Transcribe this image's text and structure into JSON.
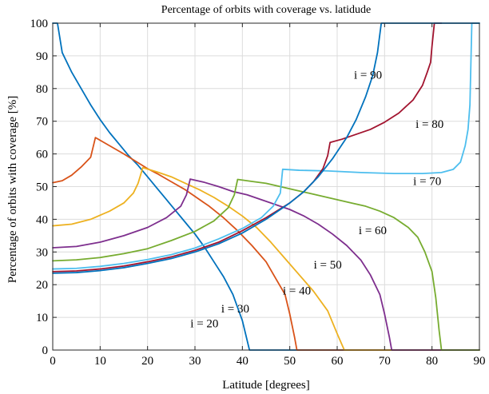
{
  "chart_data": {
    "type": "line",
    "title": "Percentage of orbits with coverage vs. latidude",
    "xlabel": "Latitude [degrees]",
    "ylabel": "Percentage of orbits with coverage [%]",
    "xlim": [
      0,
      90
    ],
    "ylim": [
      0,
      100
    ],
    "xticks": [
      0,
      10,
      20,
      30,
      40,
      50,
      60,
      70,
      80,
      90
    ],
    "yticks": [
      0,
      10,
      20,
      30,
      40,
      50,
      60,
      70,
      80,
      90,
      100
    ],
    "grid": true,
    "legend": "none",
    "series": [
      {
        "name": "i = 20",
        "color": "#0072BD",
        "points": [
          [
            0,
            100
          ],
          [
            1,
            100
          ],
          [
            2,
            91
          ],
          [
            4,
            85
          ],
          [
            6,
            80
          ],
          [
            8,
            75
          ],
          [
            10,
            70.5
          ],
          [
            12,
            66.5
          ],
          [
            14,
            63
          ],
          [
            16,
            59.5
          ],
          [
            18,
            56.5
          ],
          [
            20,
            53
          ],
          [
            22,
            49.5
          ],
          [
            24,
            46
          ],
          [
            26,
            42.5
          ],
          [
            28,
            39
          ],
          [
            30,
            35.5
          ],
          [
            32,
            31.5
          ],
          [
            34,
            27
          ],
          [
            36,
            22.5
          ],
          [
            38,
            17
          ],
          [
            39,
            13
          ],
          [
            40,
            9
          ],
          [
            41,
            3
          ],
          [
            41.5,
            0
          ],
          [
            90,
            0
          ]
        ]
      },
      {
        "name": "i = 30",
        "color": "#D95319",
        "points": [
          [
            0,
            51.2
          ],
          [
            2,
            51.8
          ],
          [
            4,
            53.5
          ],
          [
            6,
            56
          ],
          [
            8,
            59
          ],
          [
            9,
            65
          ],
          [
            12,
            62.5
          ],
          [
            15,
            60
          ],
          [
            18,
            57.3
          ],
          [
            20,
            55.5
          ],
          [
            22,
            54
          ],
          [
            25,
            51.5
          ],
          [
            28,
            49
          ],
          [
            30,
            47
          ],
          [
            33,
            44
          ],
          [
            36,
            40.5
          ],
          [
            39,
            36.5
          ],
          [
            42,
            32
          ],
          [
            45,
            27
          ],
          [
            47,
            22
          ],
          [
            49,
            17
          ],
          [
            50,
            11
          ],
          [
            51,
            4
          ],
          [
            51.5,
            0
          ],
          [
            90,
            0
          ]
        ]
      },
      {
        "name": "i = 40",
        "color": "#EDB120",
        "points": [
          [
            0,
            38
          ],
          [
            4,
            38.5
          ],
          [
            8,
            40
          ],
          [
            12,
            42.5
          ],
          [
            15,
            45
          ],
          [
            17,
            48
          ],
          [
            18,
            51
          ],
          [
            19,
            55.8
          ],
          [
            22,
            54.5
          ],
          [
            25,
            53
          ],
          [
            28,
            51
          ],
          [
            31,
            49
          ],
          [
            34,
            46.7
          ],
          [
            37,
            44
          ],
          [
            40,
            41
          ],
          [
            43,
            37.5
          ],
          [
            46,
            33
          ],
          [
            49,
            28
          ],
          [
            52,
            23
          ],
          [
            55,
            18
          ],
          [
            58,
            12
          ],
          [
            60,
            5
          ],
          [
            61.5,
            0
          ],
          [
            90,
            0
          ]
        ]
      },
      {
        "name": "i = 50",
        "color": "#7E2F8E",
        "points": [
          [
            0,
            31.3
          ],
          [
            5,
            31.7
          ],
          [
            10,
            33
          ],
          [
            15,
            35
          ],
          [
            20,
            37.5
          ],
          [
            24,
            40.5
          ],
          [
            27,
            44
          ],
          [
            28.2,
            47.5
          ],
          [
            29,
            52.3
          ],
          [
            32,
            51.3
          ],
          [
            35,
            50
          ],
          [
            38,
            48.5
          ],
          [
            41,
            47.5
          ],
          [
            44,
            46
          ],
          [
            47,
            44.5
          ],
          [
            50,
            43
          ],
          [
            53,
            41
          ],
          [
            56,
            38.5
          ],
          [
            59,
            35.5
          ],
          [
            62,
            32
          ],
          [
            65,
            27.5
          ],
          [
            67,
            23
          ],
          [
            69,
            17
          ],
          [
            70,
            11
          ],
          [
            71,
            4
          ],
          [
            71.5,
            0
          ],
          [
            90,
            0
          ]
        ]
      },
      {
        "name": "i = 60",
        "color": "#77AC30",
        "points": [
          [
            0,
            27.3
          ],
          [
            5,
            27.6
          ],
          [
            10,
            28.3
          ],
          [
            15,
            29.5
          ],
          [
            20,
            31
          ],
          [
            25,
            33.5
          ],
          [
            30,
            36.3
          ],
          [
            34,
            39.5
          ],
          [
            37,
            43.5
          ],
          [
            38.3,
            47.5
          ],
          [
            39,
            52.2
          ],
          [
            42,
            51.6
          ],
          [
            45,
            51
          ],
          [
            48,
            50
          ],
          [
            51,
            49
          ],
          [
            54,
            48
          ],
          [
            57,
            47
          ],
          [
            60,
            46
          ],
          [
            63,
            45
          ],
          [
            66,
            44
          ],
          [
            69,
            42.5
          ],
          [
            72,
            40.5
          ],
          [
            75,
            37.5
          ],
          [
            77,
            34.5
          ],
          [
            78.5,
            30
          ],
          [
            80,
            24
          ],
          [
            80.8,
            16
          ],
          [
            81.5,
            6
          ],
          [
            82,
            0
          ],
          [
            90,
            0
          ]
        ]
      },
      {
        "name": "i = 70",
        "color": "#4DBEEE",
        "points": [
          [
            0,
            24.8
          ],
          [
            5,
            25
          ],
          [
            10,
            25.6
          ],
          [
            15,
            26.5
          ],
          [
            20,
            27.7
          ],
          [
            25,
            29.2
          ],
          [
            30,
            31.2
          ],
          [
            35,
            34
          ],
          [
            40,
            37.2
          ],
          [
            44,
            40.5
          ],
          [
            46.5,
            44
          ],
          [
            48,
            48
          ],
          [
            48.5,
            55.3
          ],
          [
            52,
            55
          ],
          [
            58,
            54.8
          ],
          [
            65,
            54.3
          ],
          [
            72,
            54
          ],
          [
            78,
            54
          ],
          [
            82,
            54.3
          ],
          [
            84.5,
            55.3
          ],
          [
            86,
            57.5
          ],
          [
            87,
            62.5
          ],
          [
            87.6,
            67.5
          ],
          [
            88,
            75
          ],
          [
            88.4,
            100
          ],
          [
            90,
            100
          ]
        ]
      },
      {
        "name": "i = 80",
        "color": "#A2142F",
        "points": [
          [
            0,
            24
          ],
          [
            5,
            24.2
          ],
          [
            10,
            24.8
          ],
          [
            15,
            25.7
          ],
          [
            20,
            27
          ],
          [
            25,
            28.5
          ],
          [
            30,
            30.5
          ],
          [
            35,
            33
          ],
          [
            40,
            36.5
          ],
          [
            45,
            40.5
          ],
          [
            50,
            45
          ],
          [
            53,
            48.5
          ],
          [
            55,
            51.5
          ],
          [
            57,
            55.5
          ],
          [
            58,
            59.5
          ],
          [
            58.5,
            63.5
          ],
          [
            61,
            64.5
          ],
          [
            64,
            66
          ],
          [
            67,
            67.5
          ],
          [
            70,
            69.7
          ],
          [
            73,
            72.5
          ],
          [
            76,
            76.5
          ],
          [
            78,
            81
          ],
          [
            79,
            85
          ],
          [
            79.7,
            88
          ],
          [
            80,
            93
          ],
          [
            80.5,
            100
          ],
          [
            82,
            100
          ]
        ]
      },
      {
        "name": "i = 90",
        "color": "#0072BD",
        "points": [
          [
            0,
            23.5
          ],
          [
            5,
            23.7
          ],
          [
            10,
            24.3
          ],
          [
            15,
            25.2
          ],
          [
            20,
            26.5
          ],
          [
            25,
            28
          ],
          [
            30,
            30
          ],
          [
            35,
            32.5
          ],
          [
            40,
            35.8
          ],
          [
            45,
            40
          ],
          [
            50,
            45
          ],
          [
            53,
            48.5
          ],
          [
            56,
            53
          ],
          [
            59,
            58.5
          ],
          [
            62,
            65
          ],
          [
            64,
            70.5
          ],
          [
            66,
            77.5
          ],
          [
            67.5,
            84
          ],
          [
            68.5,
            91
          ],
          [
            69.3,
            100
          ],
          [
            90,
            100
          ]
        ]
      }
    ],
    "annotations": [
      {
        "text": "i = 20",
        "x": 32,
        "y": 7
      },
      {
        "text": "i = 30",
        "x": 38.5,
        "y": 11.5
      },
      {
        "text": "i = 40",
        "x": 51.5,
        "y": 17
      },
      {
        "text": "i = 50",
        "x": 58,
        "y": 25
      },
      {
        "text": "i = 60",
        "x": 67.5,
        "y": 35.5
      },
      {
        "text": "i = 70",
        "x": 79,
        "y": 50.5
      },
      {
        "text": "i = 80",
        "x": 79.5,
        "y": 68
      },
      {
        "text": "i = 90",
        "x": 66.5,
        "y": 83
      }
    ]
  }
}
